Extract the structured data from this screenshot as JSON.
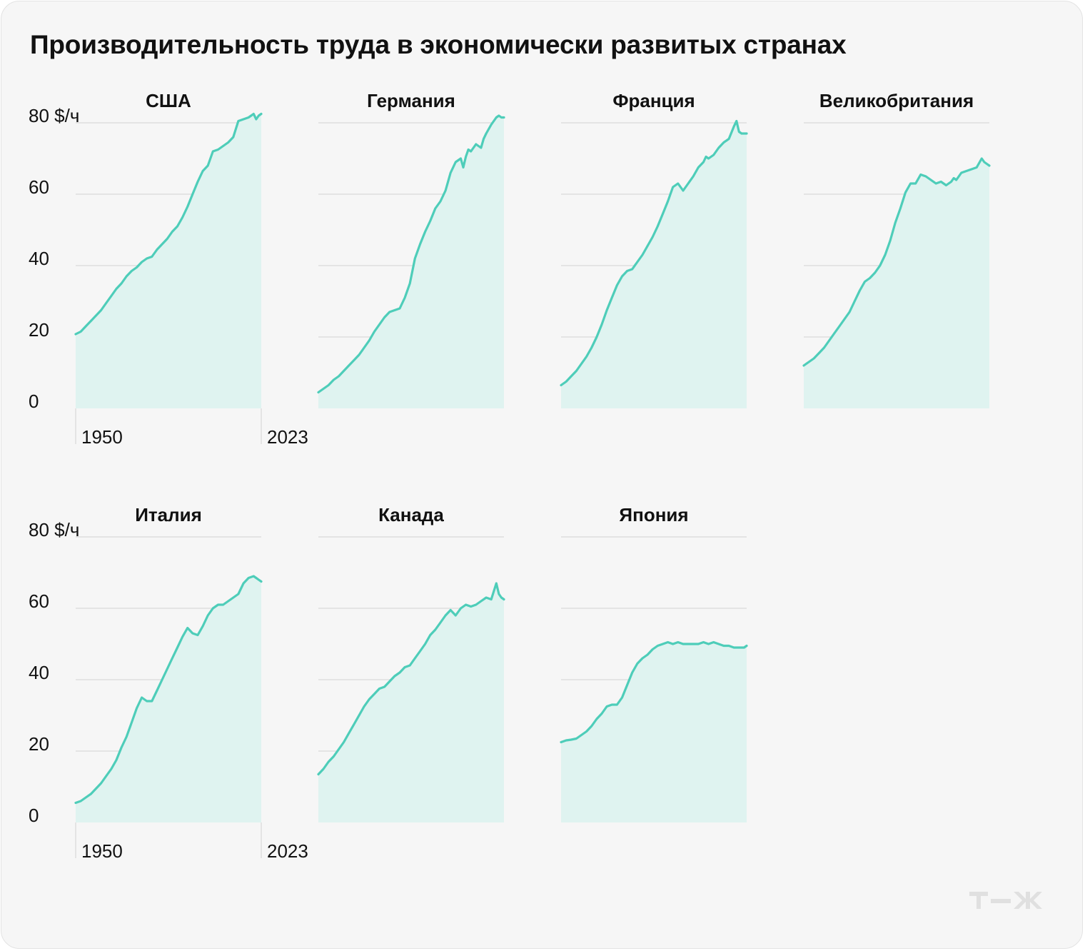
{
  "title": "Производительность труда в экономически развитых странах",
  "brand": "т—ж",
  "colors": {
    "background": "#f6f6f6",
    "line": "#4ecdb9",
    "area": "#dff3f0",
    "grid": "#dedede",
    "text": "#111111"
  },
  "chart_data": [
    {
      "type": "area",
      "title": "США",
      "ylabel": "$/ч",
      "ylim": [
        0,
        80
      ],
      "yticks": [
        0,
        20,
        40,
        60,
        80
      ],
      "ytick_labels": [
        "0",
        "20",
        "40",
        "60",
        "80 $/ч"
      ],
      "xlim": [
        1950,
        2023
      ],
      "xtick_labels": [
        "1950",
        "2023"
      ],
      "x": [
        1950,
        1952,
        1954,
        1956,
        1958,
        1960,
        1962,
        1964,
        1966,
        1968,
        1970,
        1972,
        1974,
        1976,
        1978,
        1980,
        1982,
        1984,
        1986,
        1988,
        1990,
        1992,
        1994,
        1996,
        1998,
        2000,
        2002,
        2004,
        2006,
        2008,
        2010,
        2012,
        2014,
        2016,
        2018,
        2019,
        2020,
        2021,
        2022,
        2023
      ],
      "values": [
        20.8,
        21.5,
        23,
        24.5,
        26,
        27.5,
        29.5,
        31.5,
        33.5,
        35,
        37,
        38.5,
        39.5,
        41,
        42,
        42.5,
        44.5,
        46,
        47.5,
        49.5,
        51,
        53.5,
        56.5,
        60,
        63.5,
        66.5,
        68,
        72,
        72.5,
        73.5,
        74.5,
        76,
        80.5,
        81,
        81.5,
        82,
        82.5,
        81,
        82,
        82.5
      ]
    },
    {
      "type": "area",
      "title": "Германия",
      "ylabel": "$/ч",
      "ylim": [
        0,
        80
      ],
      "xlim": [
        1950,
        2023
      ],
      "x": [
        1950,
        1952,
        1954,
        1956,
        1958,
        1960,
        1962,
        1964,
        1966,
        1968,
        1970,
        1972,
        1974,
        1976,
        1978,
        1980,
        1982,
        1984,
        1986,
        1988,
        1990,
        1992,
        1994,
        1996,
        1998,
        2000,
        2002,
        2004,
        2006,
        2007,
        2008,
        2009,
        2010,
        2012,
        2014,
        2015,
        2016,
        2018,
        2020,
        2021,
        2022,
        2023
      ],
      "values": [
        4.5,
        5.5,
        6.5,
        8,
        9,
        10.5,
        12,
        13.5,
        15,
        17,
        19,
        21.5,
        23.5,
        25.5,
        27,
        27.5,
        28,
        31,
        35,
        42,
        46,
        49.5,
        52.5,
        56,
        58,
        61,
        66,
        69,
        70,
        67.5,
        70.5,
        72.5,
        72,
        74,
        73,
        75.5,
        77,
        79.5,
        81.5,
        82,
        81.5,
        81.5
      ]
    },
    {
      "type": "area",
      "title": "Франция",
      "ylabel": "$/ч",
      "ylim": [
        0,
        80
      ],
      "xlim": [
        1950,
        2023
      ],
      "x": [
        1950,
        1952,
        1954,
        1956,
        1958,
        1960,
        1962,
        1964,
        1966,
        1968,
        1970,
        1972,
        1974,
        1976,
        1978,
        1980,
        1982,
        1984,
        1986,
        1988,
        1990,
        1992,
        1994,
        1996,
        1998,
        2000,
        2002,
        2004,
        2006,
        2007,
        2008,
        2010,
        2012,
        2014,
        2016,
        2018,
        2019,
        2020,
        2021,
        2022,
        2023
      ],
      "values": [
        6.5,
        7.5,
        9,
        10.5,
        12.5,
        14.5,
        17,
        20,
        23.5,
        27.5,
        31,
        34.5,
        37,
        38.5,
        39,
        41,
        43,
        45.5,
        48,
        51,
        54.5,
        58,
        62,
        63,
        61,
        63,
        65,
        67.5,
        69,
        70.5,
        70,
        71,
        73,
        74.5,
        75.5,
        79,
        80.5,
        77.5,
        77,
        77,
        77
      ]
    },
    {
      "type": "area",
      "title": "Великобритания",
      "ylabel": "$/ч",
      "ylim": [
        0,
        80
      ],
      "xlim": [
        1950,
        2023
      ],
      "x": [
        1950,
        1952,
        1954,
        1956,
        1958,
        1960,
        1962,
        1964,
        1966,
        1968,
        1970,
        1972,
        1974,
        1976,
        1978,
        1980,
        1982,
        1984,
        1986,
        1988,
        1990,
        1992,
        1994,
        1996,
        1998,
        2000,
        2002,
        2004,
        2006,
        2008,
        2009,
        2010,
        2012,
        2014,
        2016,
        2018,
        2020,
        2021,
        2022,
        2023
      ],
      "values": [
        12,
        13,
        14,
        15.5,
        17,
        19,
        21,
        23,
        25,
        27,
        30,
        33,
        35.5,
        36.5,
        38,
        40,
        43,
        47,
        52,
        56,
        60.5,
        63,
        63,
        65.5,
        65,
        64,
        63,
        63.5,
        62.5,
        63.5,
        64.5,
        64,
        66,
        66.5,
        67,
        67.5,
        70,
        69,
        68.5,
        68
      ]
    },
    {
      "type": "area",
      "title": "Италия",
      "ylabel": "$/ч",
      "ylim": [
        0,
        80
      ],
      "yticks": [
        0,
        20,
        40,
        60,
        80
      ],
      "ytick_labels": [
        "0",
        "20",
        "40",
        "60",
        "80 $/ч"
      ],
      "xlim": [
        1950,
        2023
      ],
      "xtick_labels": [
        "1950",
        "2023"
      ],
      "x": [
        1950,
        1952,
        1954,
        1956,
        1958,
        1960,
        1962,
        1964,
        1966,
        1968,
        1970,
        1972,
        1974,
        1976,
        1978,
        1980,
        1982,
        1984,
        1986,
        1988,
        1990,
        1992,
        1994,
        1996,
        1998,
        2000,
        2002,
        2004,
        2006,
        2008,
        2010,
        2012,
        2014,
        2016,
        2018,
        2020,
        2021,
        2022,
        2023
      ],
      "values": [
        5.5,
        6,
        7,
        8,
        9.5,
        11,
        13,
        15,
        17.5,
        21,
        24,
        28,
        32,
        35,
        34,
        34,
        37,
        40,
        43,
        46,
        49,
        52,
        54.5,
        53,
        52.5,
        55,
        58,
        60,
        61,
        61,
        62,
        63,
        64,
        67,
        68.5,
        69,
        68.5,
        68,
        67.5
      ]
    },
    {
      "type": "area",
      "title": "Канада",
      "ylabel": "$/ч",
      "ylim": [
        0,
        80
      ],
      "xlim": [
        1950,
        2023
      ],
      "x": [
        1950,
        1952,
        1954,
        1956,
        1958,
        1960,
        1962,
        1964,
        1966,
        1968,
        1970,
        1972,
        1974,
        1976,
        1978,
        1980,
        1982,
        1984,
        1986,
        1988,
        1990,
        1992,
        1994,
        1996,
        1998,
        2000,
        2002,
        2004,
        2006,
        2008,
        2010,
        2012,
        2014,
        2016,
        2018,
        2020,
        2021,
        2022,
        2023
      ],
      "values": [
        13.5,
        15,
        17,
        18.5,
        20.5,
        22.5,
        25,
        27.5,
        30,
        32.5,
        34.5,
        36,
        37.5,
        38,
        39.5,
        41,
        42,
        43.5,
        44,
        46,
        48,
        50,
        52.5,
        54,
        56,
        58,
        59.5,
        58,
        60,
        61,
        60.5,
        61,
        62,
        63,
        62.5,
        67,
        64,
        63,
        62.5
      ]
    },
    {
      "type": "area",
      "title": "Япония",
      "ylabel": "$/ч",
      "ylim": [
        0,
        80
      ],
      "xlim": [
        1950,
        2023
      ],
      "x": [
        1950,
        1952,
        1954,
        1956,
        1958,
        1960,
        1962,
        1964,
        1966,
        1968,
        1970,
        1972,
        1974,
        1976,
        1978,
        1980,
        1982,
        1984,
        1986,
        1988,
        1990,
        1992,
        1994,
        1996,
        1998,
        2000,
        2002,
        2004,
        2006,
        2008,
        2010,
        2012,
        2014,
        2016,
        2018,
        2020,
        2022,
        2023
      ],
      "values": [
        22.5,
        23,
        23.2,
        23.5,
        24.5,
        25.5,
        27,
        29,
        30.5,
        32.5,
        33,
        33,
        35,
        38.5,
        42,
        44.5,
        46,
        47,
        48.5,
        49.5,
        50,
        50.5,
        50,
        50.5,
        50,
        50,
        50,
        50,
        50.5,
        50,
        50.5,
        50,
        49.5,
        49.5,
        49,
        49,
        49,
        49.5
      ]
    }
  ]
}
